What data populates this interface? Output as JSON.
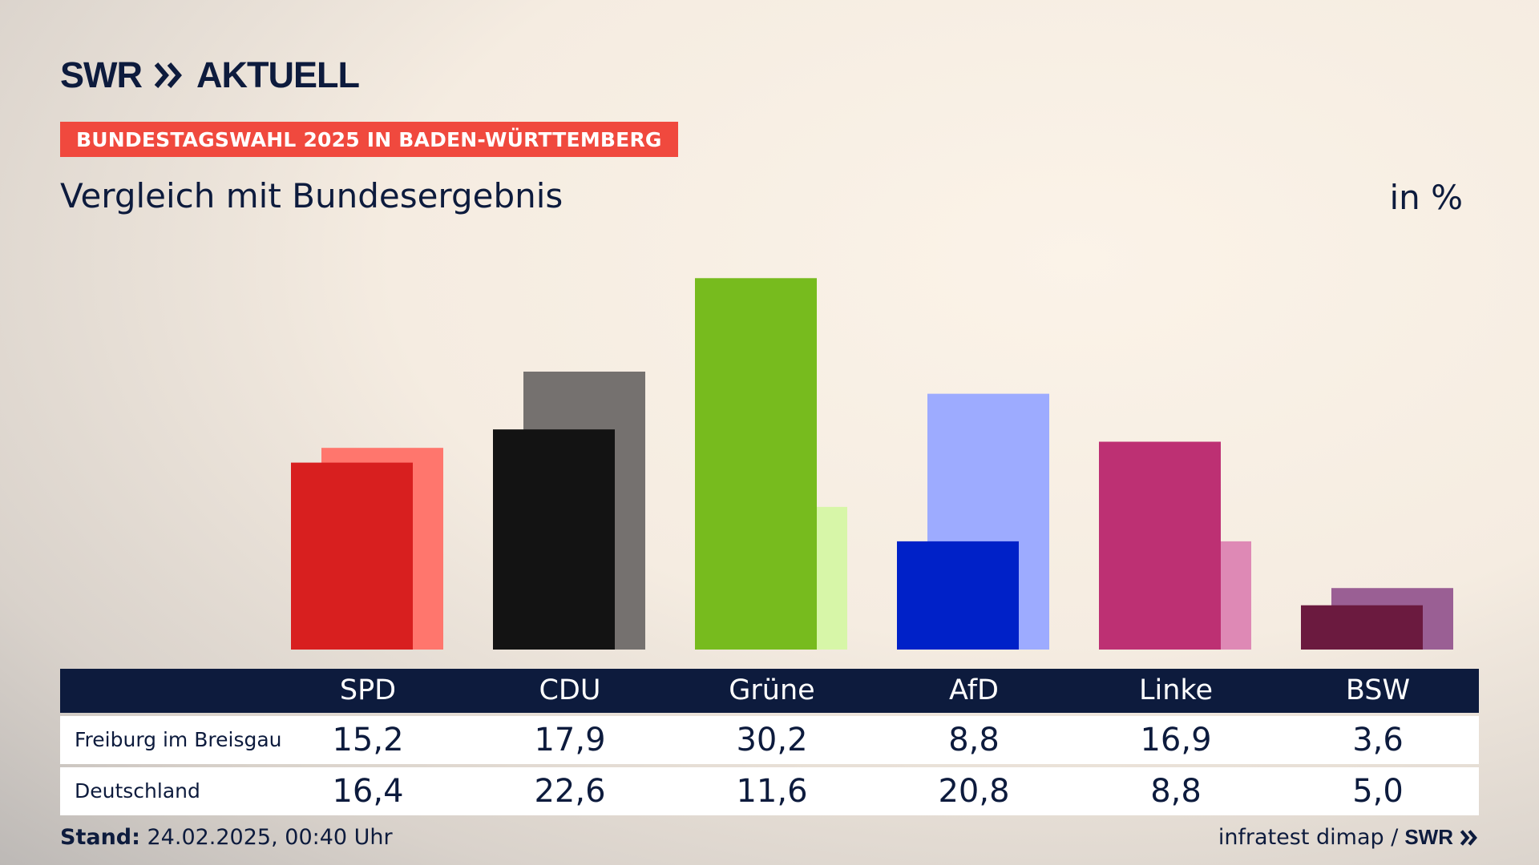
{
  "header": {
    "brand": "SWR",
    "section": "AKTUELL",
    "banner": "BUNDESTAGSWAHL 2025 IN BADEN-WÜRTTEMBERG",
    "subtitle": "Vergleich mit Bundesergebnis",
    "unit": "in %"
  },
  "chart_data": {
    "type": "bar",
    "title": "BUNDESTAGSWAHL 2025 IN BADEN-WÜRTTEMBERG",
    "subtitle": "Vergleich mit Bundesergebnis",
    "unit": "in %",
    "categories": [
      "SPD",
      "CDU",
      "Grüne",
      "AfD",
      "Linke",
      "BSW"
    ],
    "series": [
      {
        "name": "Freiburg im Breisgau",
        "values": [
          15.2,
          17.9,
          30.2,
          8.8,
          16.9,
          3.6
        ],
        "colors": [
          "#d81f1f",
          "#131313",
          "#77bb1e",
          "#0021c8",
          "#bd3073",
          "#6b1a3f"
        ]
      },
      {
        "name": "Deutschland",
        "values": [
          16.4,
          22.6,
          11.6,
          20.8,
          8.8,
          5.0
        ],
        "colors": [
          "#ff766d",
          "#75716f",
          "#d7f6a8",
          "#9dabff",
          "#de89b5",
          "#9a5f94"
        ]
      }
    ],
    "ylim": [
      0,
      31
    ]
  },
  "table": {
    "headers": [
      "SPD",
      "CDU",
      "Grüne",
      "AfD",
      "Linke",
      "BSW"
    ],
    "rows": [
      {
        "label": "Freiburg im Breisgau",
        "cells": [
          "15,2",
          "17,9",
          "30,2",
          "8,8",
          "16,9",
          "3,6"
        ]
      },
      {
        "label": "Deutschland",
        "cells": [
          "16,4",
          "22,6",
          "11,6",
          "20,8",
          "8,8",
          "5,0"
        ]
      }
    ]
  },
  "footer": {
    "stand_label": "Stand:",
    "stand_value": " 24.02.2025, 00:40 Uhr",
    "source": "infratest dimap /",
    "source_logo": "SWR"
  }
}
